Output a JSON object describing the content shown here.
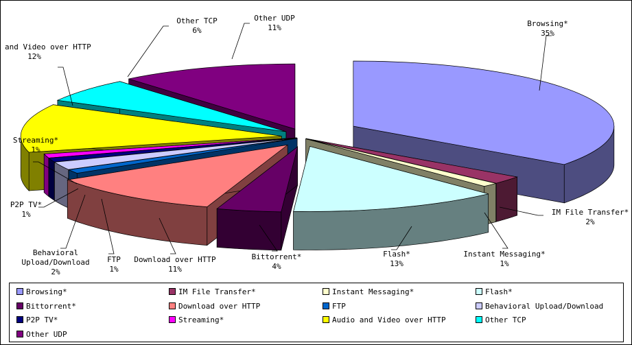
{
  "chart_data": {
    "type": "pie",
    "style": "3d-exploded",
    "title": "",
    "legend_position": "bottom",
    "slices": [
      {
        "label": "Browsing*",
        "value": 35,
        "pct_label": "35%",
        "color": "#9999ff"
      },
      {
        "label": "IM File Transfer*",
        "value": 2,
        "pct_label": "2%",
        "color": "#993366"
      },
      {
        "label": "Instant Messaging*",
        "value": 1,
        "pct_label": "1%",
        "color": "#ffffcc"
      },
      {
        "label": "Flash*",
        "value": 13,
        "pct_label": "13%",
        "color": "#ccffff"
      },
      {
        "label": "Bittorrent*",
        "value": 4,
        "pct_label": "4%",
        "color": "#660066"
      },
      {
        "label": "Download over HTTP",
        "value": 11,
        "pct_label": "11%",
        "color": "#ff8080"
      },
      {
        "label": "FTP",
        "value": 1,
        "pct_label": "1%",
        "color": "#0066cc"
      },
      {
        "label": "Behavioral Upload/Download",
        "value": 2,
        "pct_label": "2%",
        "color": "#ccccff"
      },
      {
        "label": "P2P TV*",
        "value": 1,
        "pct_label": "1%",
        "color": "#000080"
      },
      {
        "label": "Streaming*",
        "value": 1,
        "pct_label": "1%",
        "color": "#ff00ff"
      },
      {
        "label": "Audio and Video over HTTP",
        "value": 12,
        "pct_label": "12%",
        "color": "#ffff00"
      },
      {
        "label": "Other TCP",
        "value": 6,
        "pct_label": "6%",
        "color": "#00ffff"
      },
      {
        "label": "Other UDP",
        "value": 11,
        "pct_label": "11%",
        "color": "#800080"
      }
    ]
  }
}
